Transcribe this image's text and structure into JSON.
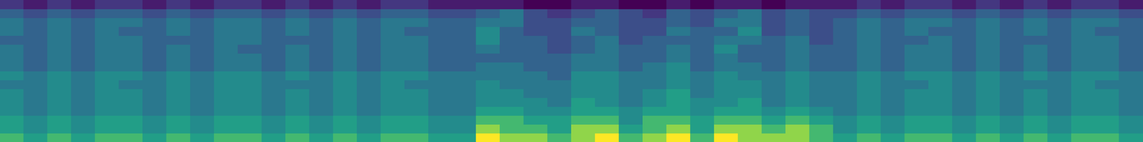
{
  "chart_data": {
    "type": "heatmap",
    "tick_labels": false,
    "grid": false,
    "cells": [
      [
        2,
        1,
        2,
        1,
        2,
        2,
        1,
        2,
        1,
        2,
        2,
        1,
        2,
        1,
        2,
        1,
        2,
        2,
        1,
        1,
        1,
        1,
        0,
        0,
        1,
        1,
        0,
        0,
        1,
        0,
        1,
        1,
        0,
        1,
        1,
        1,
        2,
        1,
        2,
        2,
        1,
        2,
        1,
        2,
        1,
        2,
        2,
        1
      ],
      [
        4,
        3,
        4,
        3,
        4,
        4,
        3,
        4,
        3,
        4,
        4,
        3,
        4,
        3,
        4,
        3,
        4,
        4,
        3,
        3,
        4,
        5,
        3,
        2,
        3,
        4,
        3,
        2,
        4,
        3,
        4,
        5,
        3,
        4,
        3,
        3,
        4,
        3,
        4,
        4,
        3,
        4,
        3,
        4,
        3,
        4,
        4,
        3
      ],
      [
        5,
        4,
        5,
        4,
        5,
        5,
        4,
        5,
        4,
        5,
        5,
        4,
        5,
        4,
        5,
        4,
        5,
        5,
        4,
        4,
        5,
        5,
        3,
        3,
        4,
        4,
        3,
        3,
        4,
        3,
        5,
        5,
        3,
        4,
        3,
        4,
        5,
        4,
        5,
        5,
        4,
        5,
        4,
        5,
        4,
        5,
        5,
        4
      ],
      [
        5,
        4,
        5,
        4,
        5,
        4,
        4,
        5,
        4,
        5,
        5,
        4,
        5,
        4,
        5,
        4,
        5,
        4,
        4,
        4,
        6,
        4,
        3,
        3,
        5,
        4,
        3,
        3,
        5,
        4,
        4,
        6,
        3,
        4,
        3,
        4,
        5,
        4,
        5,
        4,
        4,
        5,
        4,
        5,
        4,
        5,
        4,
        4
      ],
      [
        4,
        4,
        5,
        4,
        5,
        5,
        4,
        4,
        4,
        5,
        5,
        4,
        4,
        4,
        5,
        4,
        5,
        5,
        4,
        4,
        6,
        4,
        4,
        3,
        4,
        5,
        3,
        4,
        4,
        4,
        5,
        5,
        4,
        5,
        3,
        4,
        5,
        4,
        4,
        5,
        4,
        5,
        4,
        4,
        4,
        5,
        5,
        4
      ],
      [
        5,
        4,
        5,
        4,
        5,
        5,
        4,
        5,
        4,
        5,
        4,
        4,
        5,
        4,
        5,
        4,
        5,
        5,
        4,
        4,
        5,
        4,
        4,
        3,
        4,
        5,
        4,
        4,
        5,
        4,
        6,
        4,
        4,
        5,
        4,
        4,
        5,
        4,
        5,
        5,
        4,
        5,
        4,
        5,
        4,
        5,
        5,
        4
      ],
      [
        5,
        4,
        5,
        4,
        5,
        5,
        4,
        5,
        4,
        5,
        5,
        4,
        5,
        4,
        5,
        4,
        5,
        5,
        4,
        4,
        4,
        4,
        4,
        4,
        5,
        5,
        4,
        4,
        5,
        4,
        5,
        4,
        4,
        5,
        4,
        4,
        5,
        4,
        5,
        5,
        4,
        5,
        4,
        5,
        4,
        5,
        5,
        4
      ],
      [
        5,
        4,
        5,
        4,
        5,
        5,
        4,
        5,
        4,
        5,
        5,
        4,
        5,
        4,
        5,
        4,
        5,
        5,
        4,
        4,
        5,
        5,
        4,
        4,
        5,
        5,
        4,
        5,
        6,
        4,
        5,
        5,
        4,
        5,
        4,
        4,
        5,
        4,
        5,
        5,
        4,
        5,
        4,
        5,
        4,
        5,
        5,
        4
      ],
      [
        6,
        5,
        6,
        5,
        6,
        6,
        5,
        6,
        5,
        6,
        6,
        5,
        6,
        5,
        6,
        5,
        6,
        6,
        5,
        5,
        5,
        5,
        5,
        4,
        6,
        6,
        5,
        5,
        6,
        5,
        6,
        5,
        5,
        6,
        5,
        5,
        6,
        5,
        6,
        6,
        5,
        6,
        5,
        6,
        5,
        6,
        6,
        5
      ],
      [
        5,
        5,
        6,
        5,
        6,
        5,
        5,
        6,
        5,
        6,
        6,
        5,
        5,
        5,
        6,
        5,
        6,
        5,
        5,
        5,
        6,
        5,
        5,
        5,
        6,
        6,
        5,
        5,
        6,
        5,
        6,
        6,
        5,
        6,
        5,
        5,
        6,
        5,
        5,
        6,
        5,
        6,
        5,
        5,
        5,
        6,
        5,
        5
      ],
      [
        6,
        5,
        6,
        5,
        6,
        6,
        5,
        6,
        5,
        6,
        6,
        5,
        6,
        5,
        6,
        5,
        6,
        6,
        5,
        5,
        6,
        6,
        5,
        5,
        6,
        6,
        5,
        6,
        7,
        5,
        6,
        6,
        5,
        6,
        5,
        5,
        6,
        5,
        6,
        6,
        5,
        6,
        5,
        6,
        5,
        6,
        6,
        5
      ],
      [
        6,
        5,
        6,
        5,
        6,
        6,
        5,
        6,
        5,
        6,
        6,
        5,
        6,
        5,
        6,
        5,
        6,
        6,
        5,
        5,
        6,
        6,
        6,
        5,
        7,
        6,
        5,
        6,
        7,
        6,
        6,
        7,
        5,
        6,
        5,
        5,
        6,
        5,
        6,
        6,
        5,
        6,
        5,
        6,
        5,
        6,
        6,
        5
      ],
      [
        6,
        5,
        6,
        5,
        6,
        6,
        5,
        6,
        5,
        6,
        6,
        5,
        6,
        5,
        6,
        5,
        6,
        6,
        5,
        5,
        7,
        7,
        6,
        6,
        7,
        7,
        6,
        7,
        7,
        6,
        7,
        7,
        6,
        7,
        6,
        5,
        6,
        5,
        6,
        6,
        5,
        6,
        5,
        6,
        5,
        6,
        6,
        5
      ],
      [
        7,
        6,
        7,
        6,
        7,
        7,
        6,
        7,
        6,
        7,
        7,
        6,
        7,
        6,
        7,
        6,
        7,
        7,
        6,
        6,
        8,
        8,
        7,
        7,
        8,
        8,
        6,
        8,
        8,
        7,
        8,
        8,
        7,
        8,
        7,
        6,
        7,
        6,
        7,
        7,
        6,
        7,
        6,
        7,
        6,
        7,
        7,
        6
      ],
      [
        7,
        6,
        7,
        6,
        7,
        7,
        6,
        7,
        6,
        7,
        7,
        6,
        7,
        6,
        7,
        6,
        7,
        7,
        6,
        6,
        9,
        8,
        8,
        7,
        9,
        9,
        7,
        8,
        9,
        7,
        9,
        9,
        8,
        9,
        8,
        6,
        7,
        6,
        7,
        7,
        6,
        7,
        6,
        7,
        6,
        7,
        7,
        6
      ],
      [
        8,
        7,
        8,
        7,
        8,
        8,
        7,
        8,
        7,
        8,
        8,
        7,
        8,
        7,
        8,
        7,
        8,
        8,
        7,
        7,
        10,
        9,
        9,
        8,
        9,
        10,
        8,
        9,
        10,
        8,
        10,
        9,
        9,
        9,
        8,
        7,
        8,
        7,
        8,
        8,
        7,
        8,
        7,
        8,
        7,
        8,
        8,
        7
      ]
    ]
  }
}
